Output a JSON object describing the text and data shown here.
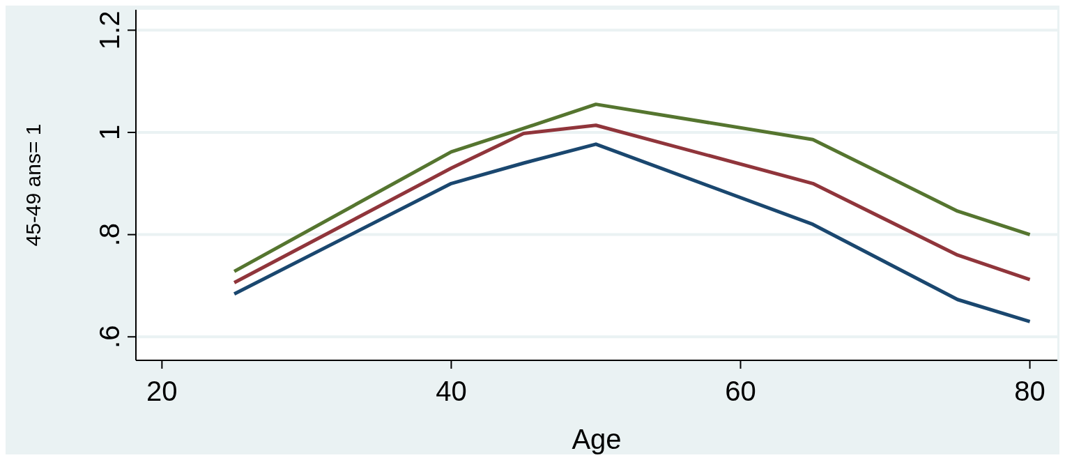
{
  "chart_data": {
    "type": "line",
    "xlabel": "Age",
    "ylabel": "45-49 ans= 1",
    "xlim": [
      18.2,
      81.9
    ],
    "xticks": [
      20,
      40,
      60,
      80
    ],
    "ylim": [
      0.554,
      1.24
    ],
    "yticks": [
      {
        "value": 0.6,
        "label": ".6"
      },
      {
        "value": 0.8,
        "label": ".8"
      },
      1,
      1.2
    ],
    "grid": "y",
    "series": [
      {
        "color": "#1a476f",
        "x": [
          25,
          40,
          45,
          50,
          65,
          75,
          80
        ],
        "values": [
          0.684,
          0.9,
          0.94,
          0.977,
          0.82,
          0.673,
          0.63
        ]
      },
      {
        "color": "#90353b",
        "x": [
          25,
          40,
          45,
          50,
          65,
          75,
          80
        ],
        "values": [
          0.706,
          0.93,
          0.998,
          1.014,
          0.9,
          0.76,
          0.712
        ]
      },
      {
        "color": "#55752f",
        "x": [
          25,
          40,
          45,
          50,
          65,
          75,
          80
        ],
        "values": [
          0.728,
          0.962,
          1.008,
          1.055,
          0.986,
          0.846,
          0.8
        ]
      }
    ]
  }
}
